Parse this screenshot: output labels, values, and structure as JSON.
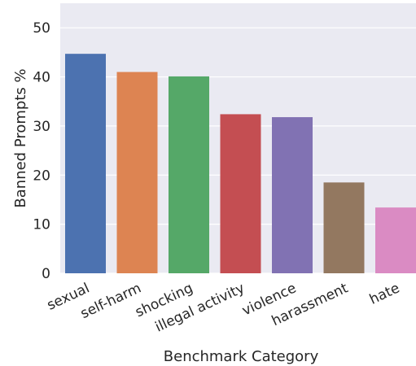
{
  "chart_data": {
    "type": "bar",
    "xlabel": "Benchmark Category",
    "ylabel": "Banned Prompts %",
    "ylim": [
      0,
      55
    ],
    "yticks": [
      0,
      10,
      20,
      30,
      40,
      50
    ],
    "grid": true,
    "categories": [
      "sexual",
      "self-harm",
      "shocking",
      "illegal activity",
      "violence",
      "harassment",
      "hate"
    ],
    "values": [
      44.7,
      41.0,
      40.1,
      32.4,
      31.8,
      18.5,
      13.4
    ],
    "colors": [
      "#4c72b0",
      "#dd8452",
      "#55a868",
      "#c44e52",
      "#8172b3",
      "#937860",
      "#da8bc3"
    ]
  }
}
